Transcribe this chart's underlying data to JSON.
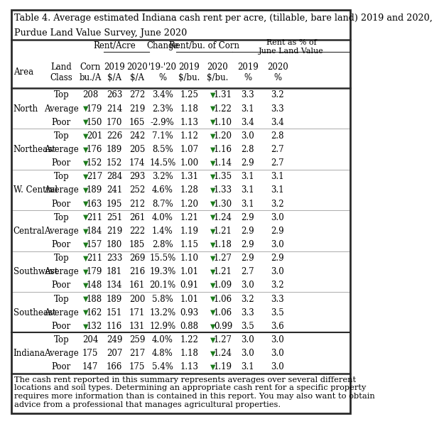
{
  "title_line1": "Table 4. Average estimated Indiana cash rent per acre, (tillable, bare land) 2019 and 2020,",
  "title_line2": "Purdue Land Value Survey, June 2020",
  "footer": "The cash rent reported in this summary represents averages over several different\nlocations and soil types. Determining an appropriate cash rent for a specific property\nrequires more information than is contained in this report. You may also want to obtain\nadvice from a professional that manages agricultural properties.",
  "rows": [
    [
      "North",
      "Top",
      "208",
      "263",
      "272",
      "3.4%",
      "1.25",
      "1.31",
      "3.3",
      "3.2",
      false,
      false
    ],
    [
      "North",
      "Average",
      "179",
      "214",
      "219",
      "2.3%",
      "1.18",
      "1.22",
      "3.1",
      "3.3",
      false,
      false
    ],
    [
      "North",
      "Poor",
      "150",
      "170",
      "165",
      "-2.9%",
      "1.13",
      "1.10",
      "3.4",
      "3.4",
      true,
      false
    ],
    [
      "Northeast",
      "Top",
      "201",
      "226",
      "242",
      "7.1%",
      "1.12",
      "1.20",
      "3.0",
      "2.8",
      false,
      false
    ],
    [
      "Northeast",
      "Average",
      "176",
      "189",
      "205",
      "8.5%",
      "1.07",
      "1.16",
      "2.8",
      "2.7",
      false,
      false
    ],
    [
      "Northeast",
      "Poor",
      "152",
      "152",
      "174",
      "14.5%",
      "1.00",
      "1.14",
      "2.9",
      "2.7",
      true,
      false
    ],
    [
      "W. Central",
      "Top",
      "217",
      "284",
      "293",
      "3.2%",
      "1.31",
      "1.35",
      "3.1",
      "3.1",
      false,
      false
    ],
    [
      "W. Central",
      "Average",
      "189",
      "241",
      "252",
      "4.6%",
      "1.28",
      "1.33",
      "3.1",
      "3.1",
      false,
      false
    ],
    [
      "W. Central",
      "Poor",
      "163",
      "195",
      "212",
      "8.7%",
      "1.20",
      "1.30",
      "3.1",
      "3.2",
      true,
      false
    ],
    [
      "Central",
      "Top",
      "211",
      "251",
      "261",
      "4.0%",
      "1.21",
      "1.24",
      "2.9",
      "3.0",
      false,
      false
    ],
    [
      "Central",
      "Average",
      "184",
      "219",
      "222",
      "1.4%",
      "1.19",
      "1.21",
      "2.9",
      "2.9",
      false,
      false
    ],
    [
      "Central",
      "Poor",
      "157",
      "180",
      "185",
      "2.8%",
      "1.15",
      "1.18",
      "2.9",
      "3.0",
      true,
      false
    ],
    [
      "Southwest",
      "Top",
      "211",
      "233",
      "269",
      "15.5%",
      "1.10",
      "1.27",
      "2.9",
      "2.9",
      false,
      false
    ],
    [
      "Southwest",
      "Average",
      "179",
      "181",
      "216",
      "19.3%",
      "1.01",
      "1.21",
      "2.7",
      "3.0",
      false,
      false
    ],
    [
      "Southwest",
      "Poor",
      "148",
      "134",
      "161",
      "20.1%",
      "0.91",
      "1.09",
      "3.0",
      "3.2",
      true,
      false
    ],
    [
      "Southeast",
      "Top",
      "188",
      "189",
      "200",
      "5.8%",
      "1.01",
      "1.06",
      "3.2",
      "3.3",
      false,
      false
    ],
    [
      "Southeast",
      "Average",
      "162",
      "151",
      "171",
      "13.2%",
      "0.93",
      "1.06",
      "3.3",
      "3.5",
      false,
      false
    ],
    [
      "Southeast",
      "Poor",
      "132",
      "116",
      "131",
      "12.9%",
      "0.88",
      "0.99",
      "3.5",
      "3.6",
      true,
      false
    ],
    [
      "Indiana",
      "Top",
      "204",
      "249",
      "259",
      "4.0%",
      "1.22",
      "1.27",
      "3.0",
      "3.0",
      false,
      true
    ],
    [
      "Indiana",
      "Average",
      "175",
      "207",
      "217",
      "4.8%",
      "1.18",
      "1.24",
      "3.0",
      "3.0",
      false,
      true
    ],
    [
      "Indiana",
      "Poor",
      "147",
      "166",
      "175",
      "5.4%",
      "1.13",
      "1.19",
      "3.1",
      "3.0",
      true,
      true
    ]
  ],
  "corn_arrow": [
    false,
    true,
    true,
    true,
    true,
    true,
    true,
    true,
    true,
    true,
    true,
    true,
    true,
    true,
    true,
    true,
    true,
    true,
    false,
    false,
    false
  ],
  "rbu20_arrow": [
    true,
    true,
    true,
    true,
    true,
    true,
    true,
    true,
    true,
    true,
    true,
    true,
    true,
    true,
    true,
    true,
    true,
    true,
    true,
    true,
    true
  ],
  "bg_color": "#FFFFFF",
  "border_color": "#2a2a2a",
  "green_color": "#1a7a1a",
  "text_color": "#000000",
  "title_fontsize": 9.2,
  "cell_fontsize": 8.5,
  "header_fontsize": 8.5,
  "footer_fontsize": 8.2
}
